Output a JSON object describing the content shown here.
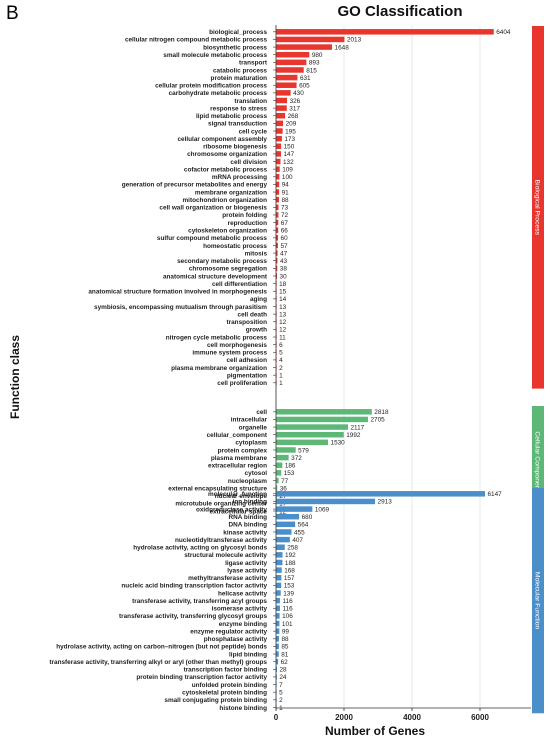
{
  "panel_letter": "B",
  "chart_data": {
    "type": "bar",
    "orientation": "horizontal",
    "title": "GO Classification",
    "xlabel": "Number of Genes",
    "ylabel": "Function class",
    "xlim": [
      0,
      7500
    ],
    "xticks": [
      0,
      2000,
      4000,
      6000
    ],
    "grid": true,
    "groups": [
      {
        "name": "Biological Process",
        "color": "#e8352e",
        "items": [
          {
            "label": "biological_process",
            "value": 6404
          },
          {
            "label": "cellular nitrogen compound metabolic process",
            "value": 2013
          },
          {
            "label": "biosynthetic process",
            "value": 1648
          },
          {
            "label": "small molecule metabolic process",
            "value": 980
          },
          {
            "label": "transport",
            "value": 893
          },
          {
            "label": "catabolic process",
            "value": 815
          },
          {
            "label": "protein maturation",
            "value": 631
          },
          {
            "label": "cellular protein modification process",
            "value": 605
          },
          {
            "label": "carbohydrate metabolic process",
            "value": 430
          },
          {
            "label": "translation",
            "value": 326
          },
          {
            "label": "response to stress",
            "value": 317
          },
          {
            "label": "lipid metabolic process",
            "value": 268
          },
          {
            "label": "signal transduction",
            "value": 209
          },
          {
            "label": "cell cycle",
            "value": 195
          },
          {
            "label": "cellular component assembly",
            "value": 173
          },
          {
            "label": "ribosome biogenesis",
            "value": 150
          },
          {
            "label": "chromosome organization",
            "value": 147
          },
          {
            "label": "cell division",
            "value": 132
          },
          {
            "label": "cofactor metabolic process",
            "value": 109
          },
          {
            "label": "mRNA processing",
            "value": 100
          },
          {
            "label": "generation of precursor metabolites and energy",
            "value": 94
          },
          {
            "label": "membrane organization",
            "value": 91
          },
          {
            "label": "mitochondrion organization",
            "value": 88
          },
          {
            "label": "cell wall organization or biogenesis",
            "value": 73
          },
          {
            "label": "protein folding",
            "value": 72
          },
          {
            "label": "reproduction",
            "value": 67
          },
          {
            "label": "cytoskeleton organization",
            "value": 66
          },
          {
            "label": "sulfur compound metabolic process",
            "value": 60
          },
          {
            "label": "homeostatic process",
            "value": 57
          },
          {
            "label": "mitosis",
            "value": 47
          },
          {
            "label": "secondary metabolic process",
            "value": 43
          },
          {
            "label": "chromosome segregation",
            "value": 38
          },
          {
            "label": "anatomical structure development",
            "value": 30
          },
          {
            "label": "cell differentiation",
            "value": 18
          },
          {
            "label": "anatomical structure formation involved in morphogenesis",
            "value": 15
          },
          {
            "label": "aging",
            "value": 14
          },
          {
            "label": "symbiosis, encompassing mutualism through parasitism",
            "value": 13
          },
          {
            "label": "cell death",
            "value": 13
          },
          {
            "label": "transposition",
            "value": 12
          },
          {
            "label": "growth",
            "value": 12
          },
          {
            "label": "nitrogen cycle metabolic process",
            "value": 11
          },
          {
            "label": "cell morphogenesis",
            "value": 6
          },
          {
            "label": "immune system process",
            "value": 5
          },
          {
            "label": "cell adhesion",
            "value": 4
          },
          {
            "label": "plasma membrane organization",
            "value": 2
          },
          {
            "label": "pigmentation",
            "value": 1
          },
          {
            "label": "cell proliferation",
            "value": 1
          }
        ]
      },
      {
        "name": "Cellular Component",
        "color": "#5db878",
        "items": [
          {
            "label": "cell",
            "value": 2818
          },
          {
            "label": "intracellular",
            "value": 2705
          },
          {
            "label": "organelle",
            "value": 2117
          },
          {
            "label": "cellular_component",
            "value": 1992
          },
          {
            "label": "cytoplasm",
            "value": 1530
          },
          {
            "label": "protein complex",
            "value": 579
          },
          {
            "label": "plasma membrane",
            "value": 372
          },
          {
            "label": "extracellular region",
            "value": 186
          },
          {
            "label": "cytosol",
            "value": 153
          },
          {
            "label": "nucleoplasm",
            "value": 77
          },
          {
            "label": "external encapsulating structure",
            "value": 36
          },
          {
            "label": "nuclear envelope",
            "value": 27
          },
          {
            "label": "microtubule organizing center",
            "value": 17
          },
          {
            "label": "extracellular space",
            "value": 12
          }
        ]
      },
      {
        "name": "Molecular Function",
        "color": "#4a8fca",
        "items": [
          {
            "label": "molecular_function",
            "value": 6147
          },
          {
            "label": "ion binding",
            "value": 2913
          },
          {
            "label": "oxidoreductase activity",
            "value": 1069
          },
          {
            "label": "RNA binding",
            "value": 680
          },
          {
            "label": "DNA binding",
            "value": 564
          },
          {
            "label": "kinase activity",
            "value": 455
          },
          {
            "label": "nucleotidyltransferase activity",
            "value": 407
          },
          {
            "label": "hydrolase activity, acting on glycosyl bonds",
            "value": 258
          },
          {
            "label": "structural molecule activity",
            "value": 192
          },
          {
            "label": "ligase activity",
            "value": 188
          },
          {
            "label": "lyase activity",
            "value": 168
          },
          {
            "label": "methyltransferase activity",
            "value": 157
          },
          {
            "label": "nucleic acid binding transcription factor activity",
            "value": 153
          },
          {
            "label": "helicase activity",
            "value": 139
          },
          {
            "label": "transferase activity, transferring acyl groups",
            "value": 116
          },
          {
            "label": "isomerase activity",
            "value": 116
          },
          {
            "label": "transferase activity, transferring glycosyl groups",
            "value": 106
          },
          {
            "label": "enzyme binding",
            "value": 101
          },
          {
            "label": "enzyme regulator activity",
            "value": 99
          },
          {
            "label": "phosphatase activity",
            "value": 88
          },
          {
            "label": "hydrolase activity, acting on carbon–nitrogen (but not peptide) bonds",
            "value": 85
          },
          {
            "label": "lipid binding",
            "value": 81
          },
          {
            "label": "transferase activity, transferring alkyl or aryl (other than methyl) groups",
            "value": 62
          },
          {
            "label": "transcription factor binding",
            "value": 28
          },
          {
            "label": "protein binding transcription factor activity",
            "value": 24
          },
          {
            "label": "unfolded protein binding",
            "value": 7
          },
          {
            "label": "cytoskeletal protein binding",
            "value": 5
          },
          {
            "label": "small conjugating protein binding",
            "value": 2
          },
          {
            "label": "histone binding",
            "value": 1
          }
        ]
      }
    ]
  }
}
